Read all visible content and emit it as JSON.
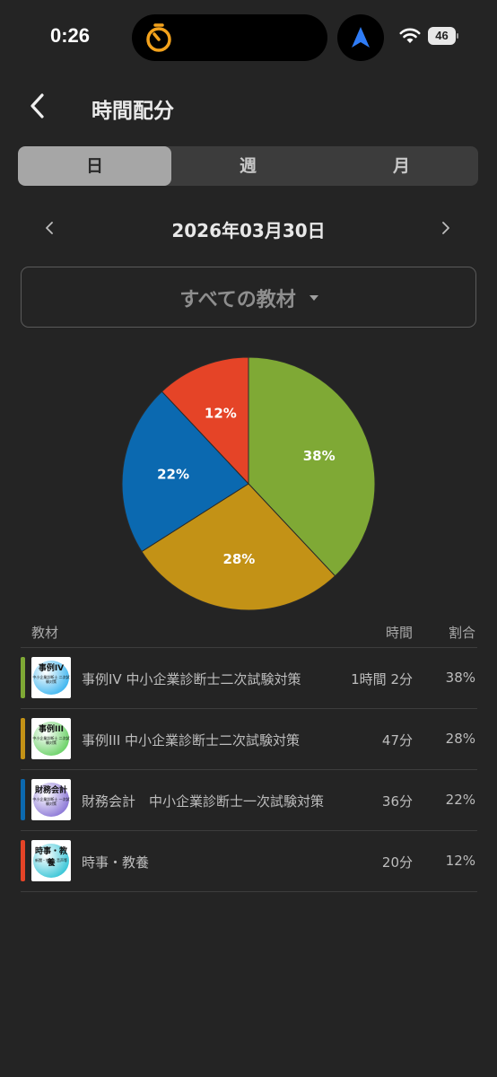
{
  "status": {
    "time": "0:26",
    "battery": "46"
  },
  "header": {
    "title": "時間配分"
  },
  "tabs": [
    {
      "label": "日",
      "active": true
    },
    {
      "label": "週",
      "active": false
    },
    {
      "label": "月",
      "active": false
    }
  ],
  "date": {
    "label": "2026年03月30日"
  },
  "filter": {
    "label": "すべての教材"
  },
  "chart_data": {
    "type": "pie",
    "slices": [
      {
        "label": "38%",
        "value": 38,
        "color": "#7fa935"
      },
      {
        "label": "28%",
        "value": 28,
        "color": "#c39216"
      },
      {
        "label": "22%",
        "value": 22,
        "color": "#0b69b0"
      },
      {
        "label": "12%",
        "value": 12,
        "color": "#e54427"
      }
    ]
  },
  "table": {
    "headers": {
      "material": "教材",
      "time": "時間",
      "ratio": "割合"
    },
    "rows": [
      {
        "name": "事例IV 中小企業診断士二次試験対策",
        "time": "1時間 2分",
        "ratio": "38%",
        "color": "#7fa935",
        "thumb_title": "事例IV",
        "thumb_sub": "中小企業診断士 二次試験対策",
        "thumb_color": "#45b8f0"
      },
      {
        "name": "事例III 中小企業診断士二次試験対策",
        "time": "47分",
        "ratio": "28%",
        "color": "#c39216",
        "thumb_title": "事例III",
        "thumb_sub": "中小企業診断士 二次試験対策",
        "thumb_color": "#6fd36b"
      },
      {
        "name": "財務会計　中小企業診断士一次試験対策",
        "time": "36分",
        "ratio": "22%",
        "color": "#0b69b0",
        "thumb_title": "財務会計",
        "thumb_sub": "中小企業診断士 一次試験対策",
        "thumb_color": "#8f7bd8"
      },
      {
        "name": "時事・教養",
        "time": "20分",
        "ratio": "12%",
        "color": "#e54427",
        "thumb_title": "時事・教養",
        "thumb_sub": "新聞・雑誌・音声等",
        "thumb_color": "#3ec7d8"
      }
    ]
  }
}
